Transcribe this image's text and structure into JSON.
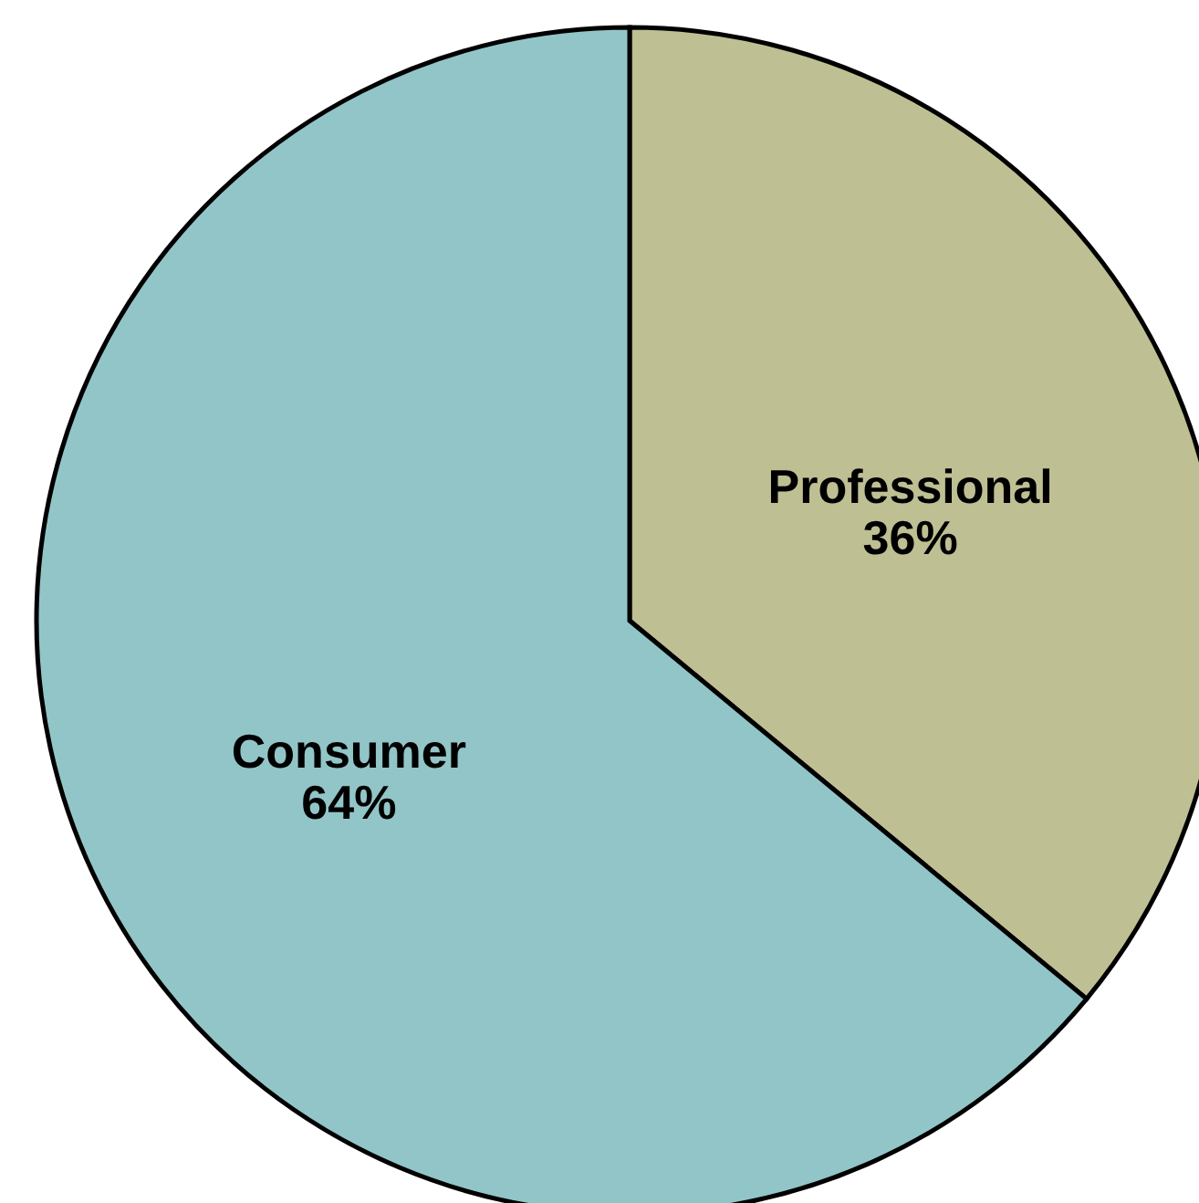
{
  "chart_data": {
    "type": "pie",
    "categories": [
      "Professional",
      "Consumer"
    ],
    "values": [
      36,
      64
    ],
    "colors": [
      "#bfbf94",
      "#92c5c8"
    ],
    "value_labels": [
      "36%",
      "64%"
    ]
  }
}
